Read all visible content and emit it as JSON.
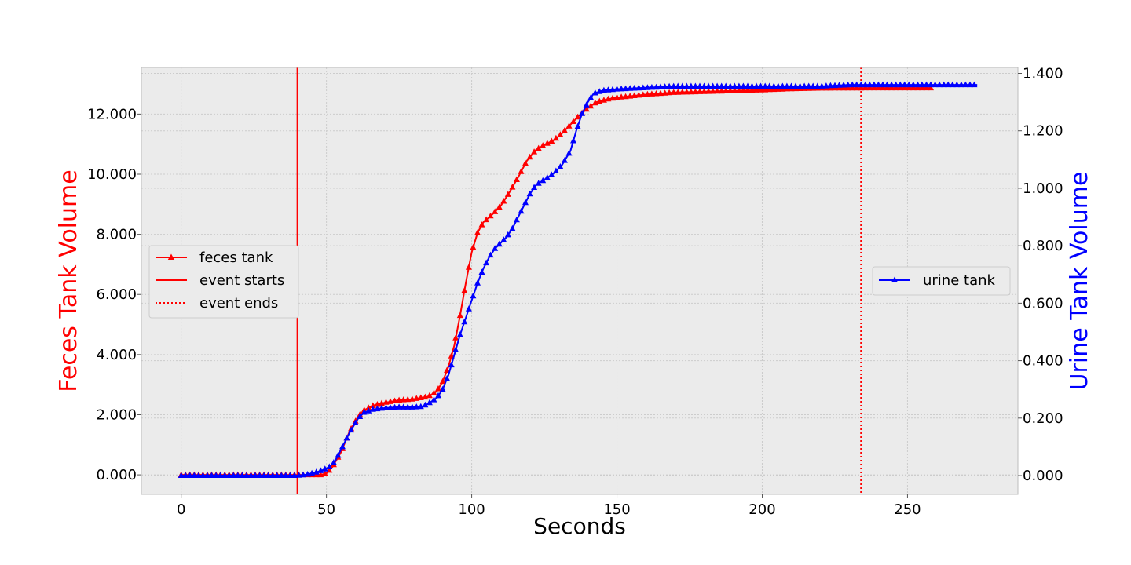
{
  "chart_data": {
    "type": "line",
    "xlabel": "Seconds",
    "ylabel_left": "Feces Tank Volume",
    "ylabel_right": "Urine Tank Volume",
    "xlim": [
      -13.7,
      288
    ],
    "ylim_left": [
      -0.65,
      13.55
    ],
    "ylim_right": [
      -0.0655,
      1.4205
    ],
    "x_ticks": [
      0,
      50,
      100,
      150,
      200,
      250
    ],
    "x_tick_labels": [
      "0",
      "50",
      "100",
      "150",
      "200",
      "250"
    ],
    "y_left_ticks": [
      0,
      2,
      4,
      6,
      8,
      10,
      12
    ],
    "y_left_tick_labels": [
      "0.000",
      "2.000",
      "4.000",
      "6.000",
      "8.000",
      "10.000",
      "12.000"
    ],
    "y_right_ticks": [
      0,
      0.2,
      0.4,
      0.6,
      0.8,
      1.0,
      1.2,
      1.4
    ],
    "y_right_tick_labels": [
      "0.000",
      "0.200",
      "0.400",
      "0.600",
      "0.800",
      "1.000",
      "1.200",
      "1.400"
    ],
    "grid": true,
    "event_start": 40,
    "event_end": 234,
    "series": [
      {
        "name": "feces tank",
        "axis": "left",
        "color": "#ff0000",
        "marker": "triangle",
        "x_range": [
          0,
          258
        ],
        "points": [
          [
            0,
            0
          ],
          [
            40,
            0
          ],
          [
            45,
            0
          ],
          [
            48,
            0
          ],
          [
            50,
            0.05
          ],
          [
            52,
            0.25
          ],
          [
            55,
            0.75
          ],
          [
            58,
            1.45
          ],
          [
            61,
            1.95
          ],
          [
            63,
            2.15
          ],
          [
            66,
            2.3
          ],
          [
            70,
            2.4
          ],
          [
            75,
            2.48
          ],
          [
            80,
            2.52
          ],
          [
            85,
            2.6
          ],
          [
            88,
            2.78
          ],
          [
            90,
            3.1
          ],
          [
            92,
            3.6
          ],
          [
            94,
            4.3
          ],
          [
            96,
            5.3
          ],
          [
            98,
            6.4
          ],
          [
            100,
            7.4
          ],
          [
            102,
            8.05
          ],
          [
            104,
            8.4
          ],
          [
            107,
            8.65
          ],
          [
            110,
            8.95
          ],
          [
            113,
            9.4
          ],
          [
            116,
            9.9
          ],
          [
            119,
            10.45
          ],
          [
            122,
            10.8
          ],
          [
            125,
            10.98
          ],
          [
            128,
            11.12
          ],
          [
            131,
            11.35
          ],
          [
            134,
            11.65
          ],
          [
            137,
            11.95
          ],
          [
            140,
            12.2
          ],
          [
            143,
            12.4
          ],
          [
            147,
            12.5
          ],
          [
            150,
            12.55
          ],
          [
            160,
            12.65
          ],
          [
            170,
            12.72
          ],
          [
            200,
            12.8
          ],
          [
            210,
            12.84
          ],
          [
            220,
            12.86
          ],
          [
            240,
            12.87
          ],
          [
            258,
            12.87
          ]
        ]
      },
      {
        "name": "urine tank",
        "axis": "right",
        "color": "#0000ff",
        "marker": "triangle",
        "x_range": [
          0,
          274
        ],
        "points": [
          [
            0,
            0
          ],
          [
            40,
            0
          ],
          [
            43,
            0.003
          ],
          [
            46,
            0.01
          ],
          [
            49,
            0.02
          ],
          [
            51,
            0.03
          ],
          [
            53,
            0.05
          ],
          [
            55,
            0.09
          ],
          [
            58,
            0.15
          ],
          [
            61,
            0.2
          ],
          [
            63,
            0.22
          ],
          [
            66,
            0.23
          ],
          [
            70,
            0.235
          ],
          [
            75,
            0.238
          ],
          [
            80,
            0.238
          ],
          [
            83,
            0.24
          ],
          [
            85,
            0.25
          ],
          [
            88,
            0.27
          ],
          [
            90,
            0.3
          ],
          [
            92,
            0.35
          ],
          [
            94,
            0.42
          ],
          [
            96,
            0.49
          ],
          [
            98,
            0.55
          ],
          [
            100,
            0.61
          ],
          [
            102,
            0.67
          ],
          [
            104,
            0.72
          ],
          [
            106,
            0.76
          ],
          [
            108,
            0.79
          ],
          [
            110,
            0.81
          ],
          [
            112,
            0.83
          ],
          [
            114,
            0.86
          ],
          [
            116,
            0.9
          ],
          [
            118,
            0.94
          ],
          [
            120,
            0.98
          ],
          [
            122,
            1.01
          ],
          [
            125,
            1.03
          ],
          [
            128,
            1.05
          ],
          [
            131,
            1.08
          ],
          [
            134,
            1.13
          ],
          [
            136,
            1.2
          ],
          [
            138,
            1.26
          ],
          [
            140,
            1.3
          ],
          [
            142,
            1.33
          ],
          [
            145,
            1.34
          ],
          [
            150,
            1.345
          ],
          [
            160,
            1.35
          ],
          [
            170,
            1.355
          ],
          [
            200,
            1.355
          ],
          [
            220,
            1.355
          ],
          [
            230,
            1.36
          ],
          [
            274,
            1.36
          ]
        ]
      }
    ],
    "legend_left": {
      "placement": "center-left",
      "entries": [
        {
          "label": "feces tank",
          "style": "line-marker"
        },
        {
          "label": "event starts",
          "style": "solid"
        },
        {
          "label": "event ends",
          "style": "dotted"
        }
      ]
    },
    "legend_right": {
      "placement": "center-right",
      "entries": [
        {
          "label": "urine tank",
          "style": "line-marker"
        }
      ]
    },
    "colors": {
      "left_axis": "#ff0000",
      "right_axis": "#0000ff",
      "plot_background": "#ebebeb",
      "grid": "#cccccc"
    }
  }
}
